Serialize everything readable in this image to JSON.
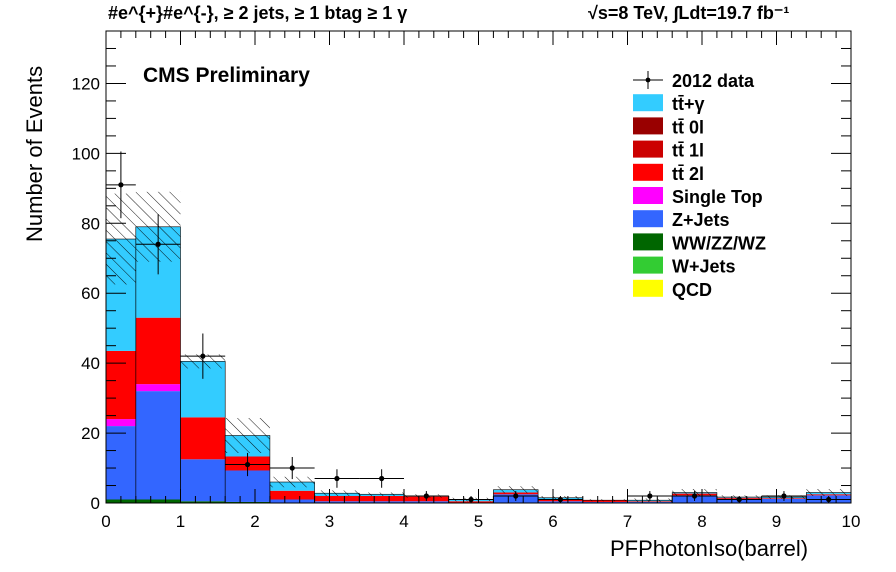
{
  "chart_data": {
    "type": "bar",
    "stacked": true,
    "title": "#e^{+}#e^{-}, ≥ 2 jets, ≥ 1 btag ≥ 1 γ",
    "title_right": "√s=8 TeV,   ∫Ldt=19.7 fb⁻¹",
    "annotation": "CMS Preliminary",
    "xlabel": "PFPhotonIso(barrel)",
    "ylabel": "Number of Events",
    "xlim": [
      0,
      10
    ],
    "ylim": [
      0,
      135
    ],
    "x_ticks": [
      0,
      1,
      2,
      3,
      4,
      5,
      6,
      7,
      8,
      9,
      10
    ],
    "y_ticks": [
      0,
      20,
      40,
      60,
      80,
      100,
      120
    ],
    "bin_edges": [
      0,
      0.4,
      1.0,
      1.6,
      2.2,
      2.8,
      3.4,
      4.0,
      4.6,
      5.2,
      5.8,
      6.4,
      7.0,
      7.6,
      8.2,
      8.8,
      9.4,
      10.0
    ],
    "legend_position": "top-right",
    "series": [
      {
        "name": "QCD",
        "color": "#ffff00",
        "values": [
          0,
          0,
          0,
          0,
          0,
          0,
          0,
          0,
          0,
          0,
          0,
          0,
          0,
          0,
          0,
          0,
          0
        ]
      },
      {
        "name": "W+Jets",
        "color": "#33cc33",
        "values": [
          0,
          0,
          0,
          0,
          0,
          0,
          0,
          0,
          0,
          0,
          0,
          0,
          0,
          0,
          0,
          0,
          0
        ]
      },
      {
        "name": "WW/ZZ/WZ",
        "color": "#006600",
        "values": [
          1,
          1,
          0.5,
          0.3,
          0,
          0,
          0,
          0,
          0,
          0,
          0,
          0,
          0,
          0,
          0,
          0,
          0
        ]
      },
      {
        "name": "Z+Jets",
        "color": "#3366ff",
        "values": [
          21,
          31,
          12,
          9,
          1,
          0.5,
          0.5,
          0.5,
          0,
          2.5,
          0.5,
          0.3,
          0.3,
          2.2,
          1.2,
          1.2,
          2.2
        ]
      },
      {
        "name": "Single Top",
        "color": "#ff00ff",
        "values": [
          2,
          2,
          0,
          0,
          0,
          0,
          0,
          0,
          0,
          0,
          0,
          0,
          0,
          0,
          0,
          0,
          0
        ]
      },
      {
        "name": "tt̄ 2l",
        "color": "#ff0000",
        "values": [
          19.5,
          19,
          12,
          4,
          2.5,
          1.5,
          1.5,
          1.3,
          0.5,
          0.5,
          0.5,
          0.5,
          0.2,
          0.5,
          0.3,
          0.2,
          0.3
        ]
      },
      {
        "name": "tt̄ 1l",
        "color": "#cc0000",
        "values": [
          0,
          0,
          0,
          0,
          0,
          0,
          0,
          0.2,
          0,
          0,
          0,
          0,
          0,
          0,
          0,
          0,
          0
        ]
      },
      {
        "name": "tt̄ 0l",
        "color": "#990000",
        "values": [
          0,
          0,
          0,
          0,
          0,
          0,
          0,
          0,
          0,
          0,
          0,
          0,
          0,
          0,
          0,
          0,
          0
        ]
      },
      {
        "name": "tt̄+γ",
        "color": "#33ccff",
        "values": [
          32,
          26,
          16,
          6,
          2.5,
          0.8,
          0.5,
          0,
          0.5,
          0.8,
          0.5,
          0,
          0.3,
          0.3,
          0.2,
          0.3,
          0.5
        ]
      }
    ],
    "mc_uncertainty": [
      13,
      10,
      2,
      5,
      1.5,
      0.8,
      0.5,
      0.5,
      0.5,
      1,
      0.5,
      0.3,
      0.5,
      1,
      0.5,
      0.5,
      1
    ],
    "data": {
      "name": "2012 data",
      "x": [
        0.2,
        0.7,
        1.3,
        1.9,
        2.5,
        3.1,
        3.7,
        4.3,
        4.9,
        5.5,
        6.1,
        6.7,
        7.3,
        7.9,
        8.5,
        9.1,
        9.7
      ],
      "y": [
        91,
        74,
        42,
        11,
        10,
        7,
        7,
        2,
        1,
        2,
        1,
        0,
        2,
        2,
        1,
        2,
        1
      ],
      "xerr": [
        0.2,
        0.3,
        0.3,
        0.3,
        0.3,
        0.3,
        0.3,
        0.3,
        0.3,
        0.3,
        0.3,
        0.3,
        0.3,
        0.3,
        0.3,
        0.3,
        0.3
      ]
    },
    "legend": [
      {
        "label": "2012 data",
        "kind": "data"
      },
      {
        "label": "tt̄+γ",
        "color": "#33ccff"
      },
      {
        "label": "tt̄ 0l",
        "color": "#990000"
      },
      {
        "label": "tt̄ 1l",
        "color": "#cc0000"
      },
      {
        "label": "tt̄ 2l",
        "color": "#ff0000"
      },
      {
        "label": "Single Top",
        "color": "#ff00ff"
      },
      {
        "label": "Z+Jets",
        "color": "#3366ff"
      },
      {
        "label": "WW/ZZ/WZ",
        "color": "#006600"
      },
      {
        "label": "W+Jets",
        "color": "#33cc33"
      },
      {
        "label": "QCD",
        "color": "#ffff00"
      }
    ]
  }
}
